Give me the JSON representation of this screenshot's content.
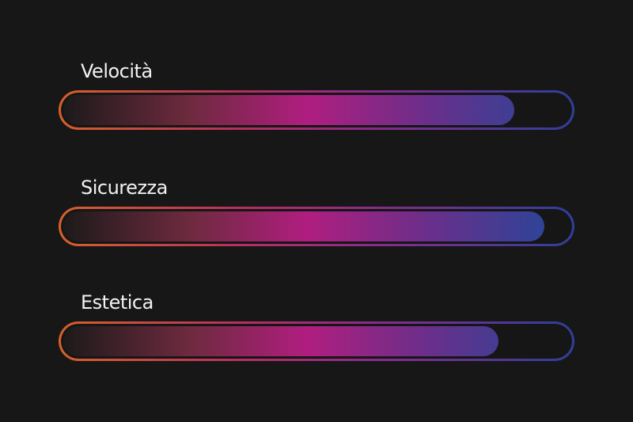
{
  "meters": [
    {
      "label": "Velocità",
      "value": 0.89
    },
    {
      "label": "Sicurezza",
      "value": 0.95
    },
    {
      "label": "Estetica",
      "value": 0.86
    }
  ],
  "colors": {
    "background": "#171717",
    "label": "#f2f2f2",
    "gradient_start": "#1c1a1a",
    "gradient_mid": "#b01e7f",
    "gradient_end": "#22489a",
    "border_start": "#d6612a",
    "border_end": "#2f3f9a"
  }
}
